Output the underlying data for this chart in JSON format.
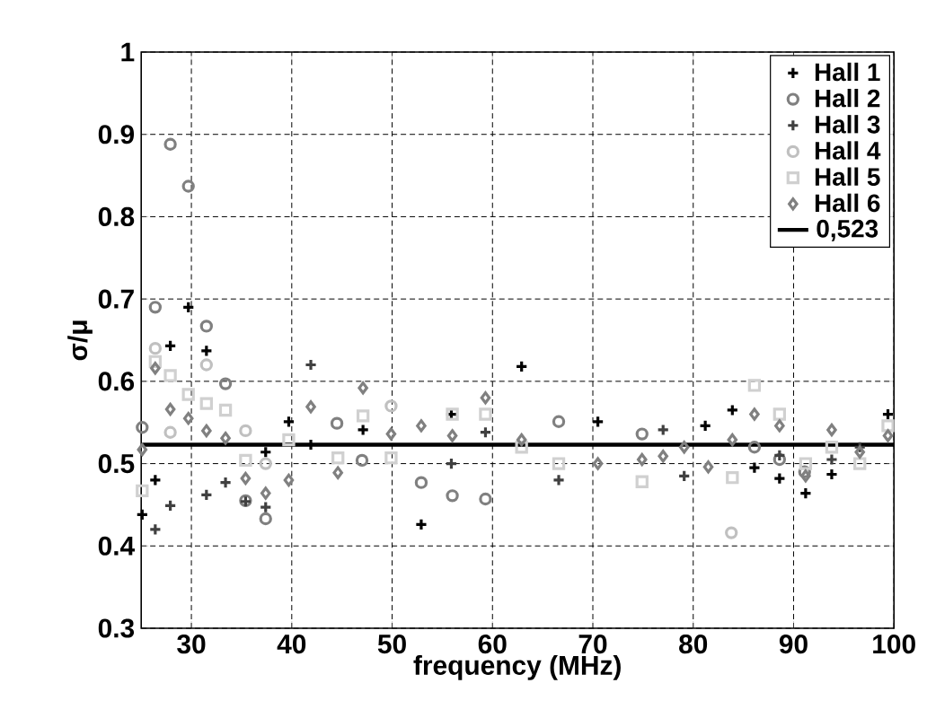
{
  "chart_data": {
    "type": "scatter",
    "xlabel": "frequency (MHz)",
    "ylabel": "σ/μ",
    "xlim": [
      25,
      100
    ],
    "ylim": [
      0.3,
      1
    ],
    "xticks": [
      30,
      40,
      50,
      60,
      70,
      80,
      90,
      100
    ],
    "yticks": [
      0.3,
      0.4,
      0.5,
      0.6,
      0.7,
      0.8,
      0.9,
      1
    ],
    "grid": true,
    "legend": "top right",
    "series": [
      {
        "name": "Hall 1",
        "color": "#000000",
        "marker": "cross",
        "x": [
          25.1,
          26.4,
          27.9,
          29.7,
          31.5,
          37.4,
          39.7,
          41.9,
          47.1,
          52.9,
          55.9,
          62.9,
          70.5,
          81.2,
          83.9,
          86.1,
          88.6,
          91.2,
          93.8,
          99.4
        ],
        "values": [
          0.438,
          0.48,
          0.643,
          0.69,
          0.637,
          0.514,
          0.551,
          0.523,
          0.541,
          0.426,
          0.56,
          0.618,
          0.551,
          0.546,
          0.565,
          0.495,
          0.482,
          0.464,
          0.487,
          0.56
        ]
      },
      {
        "name": "Hall 2",
        "color": "#808080",
        "marker": "circle",
        "x": [
          25.1,
          26.4,
          27.9,
          29.7,
          31.5,
          33.4,
          35.4,
          37.4,
          44.5,
          47.0,
          52.9,
          56.0,
          59.3,
          66.6,
          74.9,
          86.1,
          88.6,
          91.1
        ],
        "values": [
          0.544,
          0.69,
          0.888,
          0.837,
          0.667,
          0.597,
          0.455,
          0.433,
          0.549,
          0.504,
          0.477,
          0.461,
          0.457,
          0.551,
          0.536,
          0.52,
          0.505,
          0.49
        ]
      },
      {
        "name": "Hall 3",
        "color": "#404040",
        "marker": "cross",
        "x": [
          26.4,
          27.9,
          31.5,
          33.4,
          35.4,
          37.4,
          41.9,
          55.9,
          59.3,
          66.6,
          77.0,
          79.1,
          88.6,
          93.8,
          96.6
        ],
        "values": [
          0.42,
          0.449,
          0.462,
          0.477,
          0.454,
          0.447,
          0.62,
          0.5,
          0.538,
          0.48,
          0.541,
          0.485,
          0.51,
          0.505,
          0.52
        ]
      },
      {
        "name": "Hall 4",
        "color": "#c0c0c0",
        "marker": "circle",
        "x": [
          26.4,
          27.9,
          31.5,
          35.4,
          37.4,
          49.9,
          83.8
        ],
        "values": [
          0.64,
          0.538,
          0.62,
          0.54,
          0.5,
          0.57,
          0.416
        ]
      },
      {
        "name": "Hall 5",
        "color": "#d0d0d0",
        "marker": "square",
        "x": [
          25.1,
          26.4,
          27.9,
          29.7,
          31.5,
          33.4,
          35.4,
          39.7,
          44.6,
          47.1,
          49.9,
          56.0,
          59.3,
          62.9,
          66.6,
          74.9,
          83.9,
          86.1,
          88.6,
          91.2,
          93.8,
          96.6,
          99.4
        ],
        "values": [
          0.467,
          0.624,
          0.607,
          0.584,
          0.573,
          0.565,
          0.504,
          0.529,
          0.507,
          0.558,
          0.507,
          0.56,
          0.56,
          0.52,
          0.5,
          0.478,
          0.483,
          0.595,
          0.56,
          0.5,
          0.52,
          0.5,
          0.546
        ]
      },
      {
        "name": "Hall 6",
        "color": "#808080",
        "marker": "diamond",
        "x": [
          25.1,
          26.4,
          27.9,
          29.7,
          31.5,
          33.4,
          35.4,
          37.4,
          39.7,
          41.9,
          44.6,
          47.1,
          49.9,
          52.9,
          56.0,
          59.3,
          62.9,
          70.5,
          74.9,
          77.0,
          79.1,
          81.5,
          83.9,
          86.1,
          88.6,
          91.2,
          93.8,
          96.6,
          99.4
        ],
        "values": [
          0.517,
          0.616,
          0.566,
          0.555,
          0.54,
          0.531,
          0.482,
          0.464,
          0.48,
          0.569,
          0.489,
          0.592,
          0.536,
          0.546,
          0.534,
          0.58,
          0.529,
          0.5,
          0.505,
          0.509,
          0.52,
          0.496,
          0.529,
          0.56,
          0.546,
          0.485,
          0.541,
          0.514,
          0.534
        ]
      }
    ],
    "ref_lines": [
      {
        "axis": "y",
        "value": 0.523,
        "label": "0,523",
        "color": "#000000"
      }
    ]
  }
}
